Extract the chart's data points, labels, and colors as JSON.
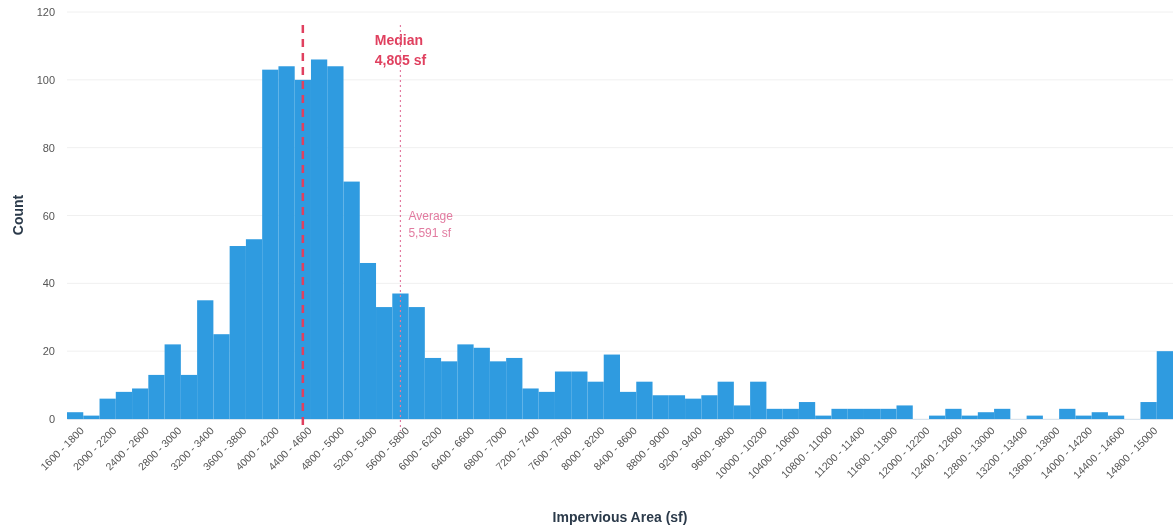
{
  "chart_data": {
    "type": "bar",
    "xlabel": "Impervious Area (sf)",
    "ylabel": "Count",
    "color": "#2f9be0",
    "categories": [
      "1600 - 1800",
      null,
      "2000 - 2200",
      null,
      "2400 - 2600",
      null,
      "2800 - 3000",
      null,
      "3200 - 3400",
      null,
      "3600 - 3800",
      null,
      "4000 - 4200",
      null,
      "4400 - 4600",
      null,
      "4800 - 5000",
      null,
      "5200 - 5400",
      null,
      "5600 - 5800",
      null,
      "6000 - 6200",
      null,
      "6400 - 6600",
      null,
      "6800 - 7000",
      null,
      "7200 - 7400",
      null,
      "7600 - 7800",
      null,
      "8000 - 8200",
      null,
      "8400 - 8600",
      null,
      "8800 - 9000",
      null,
      "9200 - 9400",
      null,
      "9600 - 9800",
      null,
      "10000 - 10200",
      null,
      "10400 - 10600",
      null,
      "10800 - 11000",
      null,
      "11200 - 11400",
      null,
      "11600 - 11800",
      null,
      "12000 - 12200",
      null,
      "12400 - 12600",
      null,
      "12800 - 13000",
      null,
      "13200 - 13400",
      null,
      "13600 - 13800",
      null,
      "14000 - 14200",
      null,
      "14400 - 14600",
      null,
      "14800 - 15000",
      null
    ],
    "values": [
      2,
      1,
      6,
      8,
      9,
      13,
      22,
      13,
      35,
      25,
      51,
      53,
      103,
      104,
      100,
      106,
      104,
      70,
      46,
      33,
      37,
      33,
      18,
      17,
      22,
      21,
      17,
      18,
      9,
      8,
      14,
      14,
      11,
      19,
      8,
      11,
      7,
      7,
      6,
      7,
      11,
      4,
      11,
      3,
      3,
      5,
      1,
      3,
      3,
      3,
      3,
      4,
      0,
      1,
      3,
      1,
      2,
      3,
      0,
      1,
      0,
      3,
      1,
      2,
      1,
      0,
      5,
      20
    ],
    "ylim": [
      0,
      120
    ],
    "yticks": [
      0,
      20,
      40,
      60,
      80,
      100,
      120
    ],
    "grid": "y",
    "ref_lines": [
      {
        "axis": "x",
        "value": "4400 - 4600",
        "label": "Median\n4,805 sf",
        "color": "#e0405f",
        "line_style": "dashed"
      },
      {
        "axis": "x",
        "value": "5600 - 5800",
        "label": "Average\n5,591 sf",
        "color": "#e27ba0",
        "line_style": "dotted"
      }
    ]
  }
}
